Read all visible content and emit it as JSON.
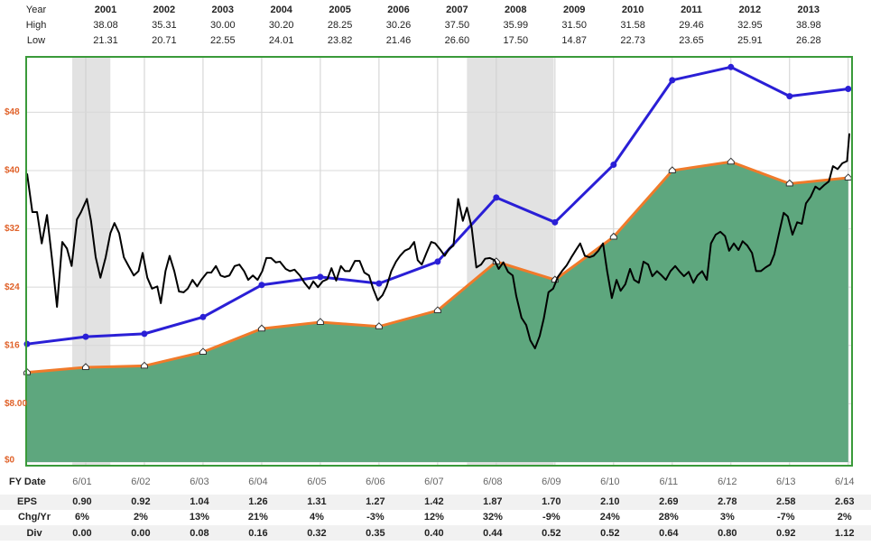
{
  "chart_data": {
    "type": "line",
    "xlim": [
      2000,
      2014.05
    ],
    "ylim": [
      0,
      55.6
    ],
    "xticks": [
      {
        "value": 2001,
        "label": "6/01"
      },
      {
        "value": 2002,
        "label": "6/02"
      },
      {
        "value": 2003,
        "label": "6/03"
      },
      {
        "value": 2004,
        "label": "6/04"
      },
      {
        "value": 2005,
        "label": "6/05"
      },
      {
        "value": 2006,
        "label": "6/06"
      },
      {
        "value": 2007,
        "label": "6/07"
      },
      {
        "value": 2008,
        "label": "6/08"
      },
      {
        "value": 2009,
        "label": "6/09"
      },
      {
        "value": 2010,
        "label": "6/10"
      },
      {
        "value": 2011,
        "label": "6/11"
      },
      {
        "value": 2012,
        "label": "6/12"
      },
      {
        "value": 2013,
        "label": "6/13"
      },
      {
        "value": 2014,
        "label": "6/14"
      }
    ],
    "yticks": [
      {
        "value": 0,
        "label": "$0"
      },
      {
        "value": 8,
        "label": "$8.00"
      },
      {
        "value": 16,
        "label": "$16"
      },
      {
        "value": 24,
        "label": "$24"
      },
      {
        "value": 32,
        "label": "$32"
      },
      {
        "value": 40,
        "label": "$40"
      },
      {
        "value": 48,
        "label": "$48"
      }
    ],
    "grid": true,
    "shaded_ranges": [
      [
        2000.77,
        2001.42
      ],
      [
        2007.5,
        2008.98
      ]
    ],
    "series": [
      {
        "kind": "area",
        "color": "#5ea77e",
        "line_color": "#f07a2a",
        "x": [
          2000,
          2001,
          2002,
          2003,
          2004,
          2005,
          2006,
          2007,
          2008,
          2009,
          2010,
          2011,
          2012,
          2013,
          2014
        ],
        "values": [
          12.3,
          13.0,
          13.2,
          15.1,
          18.3,
          19.2,
          18.6,
          20.8,
          27.5,
          25.0,
          30.9,
          40.0,
          41.2,
          38.2,
          39.0
        ]
      },
      {
        "kind": "line",
        "color": "#2a1fd6",
        "markers": true,
        "x": [
          2000,
          2001,
          2002,
          2003,
          2004,
          2005,
          2006,
          2007,
          2008,
          2009,
          2010,
          2011,
          2012,
          2013,
          2014
        ],
        "values": [
          16.2,
          17.2,
          17.6,
          19.9,
          24.3,
          25.4,
          24.5,
          27.5,
          36.3,
          32.9,
          40.8,
          52.4,
          54.2,
          50.2,
          51.2
        ]
      },
      {
        "kind": "line",
        "color": "#000000",
        "markers": false,
        "x": [
          2000.0,
          2000.09,
          2000.17,
          2000.25,
          2000.34,
          2000.43,
          2000.51,
          2000.6,
          2000.68,
          2000.76,
          2000.85,
          2000.92,
          2001.02,
          2001.09,
          2001.17,
          2001.25,
          2001.34,
          2001.42,
          2001.49,
          2001.57,
          2001.65,
          2001.73,
          2001.82,
          2001.9,
          2001.97,
          2002.05,
          2002.13,
          2002.22,
          2002.28,
          2002.36,
          2002.43,
          2002.51,
          2002.59,
          2002.67,
          2002.74,
          2002.82,
          2002.9,
          2002.97,
          2003.07,
          2003.14,
          2003.22,
          2003.3,
          2003.37,
          2003.45,
          2003.54,
          2003.62,
          2003.7,
          2003.77,
          2003.85,
          2003.93,
          2004.01,
          2004.08,
          2004.16,
          2004.24,
          2004.31,
          2004.41,
          2004.48,
          2004.56,
          2004.65,
          2004.73,
          2004.81,
          2004.88,
          2004.96,
          2005.04,
          2005.12,
          2005.19,
          2005.27,
          2005.35,
          2005.42,
          2005.5,
          2005.59,
          2005.67,
          2005.75,
          2005.83,
          2005.9,
          2005.98,
          2006.06,
          2006.13,
          2006.21,
          2006.29,
          2006.36,
          2006.44,
          2006.52,
          2006.6,
          2006.66,
          2006.73,
          2006.81,
          2006.89,
          2006.96,
          2007.04,
          2007.12,
          2007.2,
          2007.27,
          2007.35,
          2007.43,
          2007.5,
          2007.58,
          2007.66,
          2007.74,
          2007.81,
          2007.89,
          2007.97,
          2008.04,
          2008.12,
          2008.2,
          2008.28,
          2008.34,
          2008.43,
          2008.51,
          2008.58,
          2008.66,
          2008.74,
          2008.81,
          2008.89,
          2008.97,
          2009.05,
          2009.12,
          2009.2,
          2009.28,
          2009.35,
          2009.43,
          2009.51,
          2009.59,
          2009.66,
          2009.74,
          2009.82,
          2009.89,
          2009.97,
          2010.05,
          2010.12,
          2010.2,
          2010.28,
          2010.35,
          2010.43,
          2010.51,
          2010.59,
          2010.66,
          2010.74,
          2010.82,
          2010.89,
          2010.97,
          2011.05,
          2011.12,
          2011.2,
          2011.28,
          2011.36,
          2011.43,
          2011.51,
          2011.59,
          2011.66,
          2011.74,
          2011.82,
          2011.9,
          2011.97,
          2012.05,
          2012.13,
          2012.2,
          2012.28,
          2012.36,
          2012.43,
          2012.51,
          2012.59,
          2012.67,
          2012.74,
          2012.82,
          2012.9,
          2012.97,
          2013.05,
          2013.13,
          2013.21,
          2013.28,
          2013.36,
          2013.44,
          2013.51,
          2013.59,
          2013.67,
          2013.74,
          2013.82,
          2013.9,
          2013.98,
          2014.02
        ],
        "values": [
          39.6,
          34.3,
          34.3,
          30.0,
          33.9,
          27.5,
          21.3,
          30.2,
          29.3,
          26.9,
          33.3,
          34.3,
          36.1,
          33.1,
          28.1,
          25.3,
          28.1,
          31.4,
          32.8,
          31.4,
          28.1,
          26.9,
          25.6,
          26.2,
          28.7,
          25.3,
          23.8,
          24.1,
          21.8,
          26.2,
          28.3,
          26.2,
          23.4,
          23.3,
          23.8,
          25.0,
          24.1,
          25.0,
          26.0,
          26.0,
          26.9,
          25.6,
          25.4,
          25.6,
          26.9,
          27.1,
          26.2,
          25.0,
          25.6,
          25.0,
          26.2,
          28.0,
          28.0,
          27.4,
          27.5,
          26.5,
          26.2,
          26.4,
          25.6,
          24.6,
          23.8,
          24.8,
          24.0,
          24.8,
          25.1,
          26.6,
          24.9,
          26.9,
          26.2,
          26.2,
          27.6,
          27.6,
          26.0,
          25.6,
          23.8,
          22.2,
          22.9,
          24.1,
          26.2,
          27.5,
          28.3,
          29.0,
          29.3,
          30.2,
          27.7,
          27.1,
          28.7,
          30.2,
          30.0,
          29.2,
          28.3,
          29.3,
          29.7,
          36.1,
          33.1,
          34.9,
          32.2,
          26.7,
          27.1,
          27.9,
          28.0,
          27.7,
          26.5,
          27.4,
          26.1,
          25.6,
          22.8,
          19.8,
          18.8,
          16.7,
          15.6,
          17.3,
          19.7,
          23.3,
          23.8,
          25.4,
          26.2,
          27.0,
          28.1,
          29.0,
          30.0,
          28.3,
          28.1,
          28.3,
          29.0,
          30.0,
          26.2,
          22.5,
          25.0,
          23.5,
          24.4,
          26.5,
          25.0,
          24.6,
          27.5,
          27.1,
          25.5,
          26.2,
          25.6,
          25.0,
          26.2,
          26.9,
          26.2,
          25.5,
          26.1,
          24.6,
          25.6,
          26.2,
          25.0,
          30.0,
          31.2,
          31.6,
          31.0,
          29.0,
          30.0,
          29.1,
          30.3,
          29.7,
          28.7,
          26.2,
          26.2,
          26.7,
          27.1,
          28.5,
          31.4,
          34.2,
          33.7,
          31.2,
          32.9,
          32.7,
          35.5,
          36.4,
          37.8,
          37.4,
          38.0,
          38.5,
          40.6,
          40.2,
          41.0,
          41.3,
          45.1
        ]
      }
    ],
    "top_table": {
      "labels": [
        "Year",
        "High",
        "Low"
      ],
      "rows": [
        [
          "2001",
          "2002",
          "2003",
          "2004",
          "2005",
          "2006",
          "2007",
          "2008",
          "2009",
          "2010",
          "2011",
          "2012",
          "2013"
        ],
        [
          "38.08",
          "35.31",
          "30.00",
          "30.20",
          "28.25",
          "30.26",
          "37.50",
          "35.99",
          "31.50",
          "31.58",
          "29.46",
          "32.95",
          "38.98"
        ],
        [
          "21.31",
          "20.71",
          "22.55",
          "24.01",
          "23.82",
          "21.46",
          "26.60",
          "17.50",
          "14.87",
          "22.73",
          "23.65",
          "25.91",
          "26.28"
        ]
      ]
    },
    "bottom_table": {
      "date_label": "FY Date",
      "labels": [
        "EPS",
        "Chg/Yr",
        "Div"
      ],
      "rows": [
        [
          "0.90",
          "0.92",
          "1.04",
          "1.26",
          "1.31",
          "1.27",
          "1.42",
          "1.87",
          "1.70",
          "2.10",
          "2.69",
          "2.78",
          "2.58",
          "2.63"
        ],
        [
          "6%",
          "2%",
          "13%",
          "21%",
          "4%",
          "-3%",
          "12%",
          "32%",
          "-9%",
          "24%",
          "28%",
          "3%",
          "-7%",
          "2%"
        ],
        [
          "0.00",
          "0.00",
          "0.08",
          "0.16",
          "0.32",
          "0.35",
          "0.40",
          "0.44",
          "0.52",
          "0.52",
          "0.64",
          "0.80",
          "0.92",
          "1.12"
        ]
      ]
    }
  }
}
